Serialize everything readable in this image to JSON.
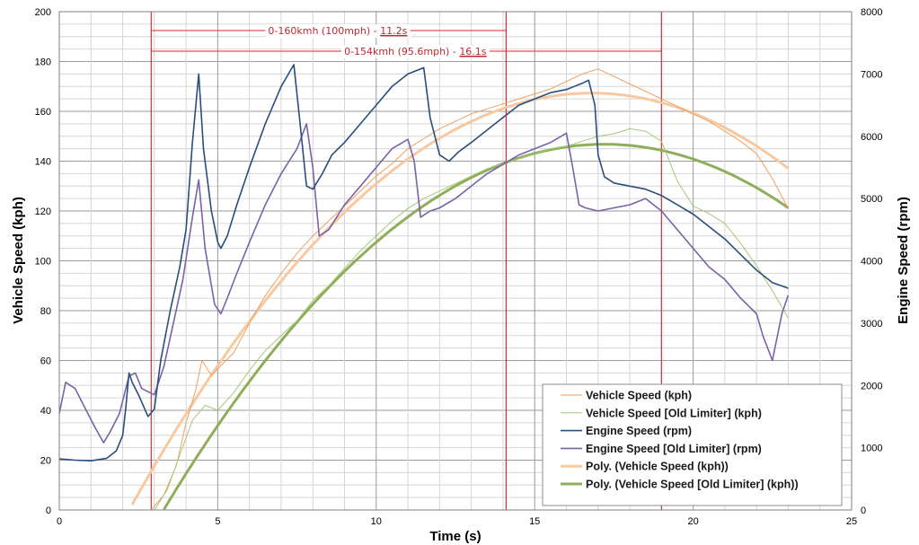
{
  "chart_data": {
    "type": "line",
    "title": "",
    "xlabel": "Time (s)",
    "ylabel_left": "Vehicle Speed (kph)",
    "ylabel_right": "Engine Speed (rpm)",
    "xlim": [
      0,
      25
    ],
    "ylim_left": [
      0,
      200
    ],
    "ylim_right": [
      0,
      8000
    ],
    "xticks": [
      0,
      5,
      10,
      15,
      20,
      25
    ],
    "yticks_left": [
      0,
      20,
      40,
      60,
      80,
      100,
      120,
      140,
      160,
      180,
      200
    ],
    "yticks_right": [
      0,
      1000,
      2000,
      3000,
      4000,
      5000,
      6000,
      7000,
      8000
    ],
    "grid": true,
    "legend_position": "bottom-right",
    "annotations": [
      {
        "text": "0-160kmh (100mph) - ",
        "highlight": "11.2s",
        "x_start": 2.9,
        "x_end": 14.1
      },
      {
        "text": "0-154kmh (95.6mph) - ",
        "highlight": "16.1s",
        "x_start": 2.9,
        "x_end": 19.0
      }
    ],
    "vertical_lines_x": [
      2.9,
      14.1,
      19.0
    ],
    "series": [
      {
        "name": "Vehicle Speed (kph)",
        "axis": "left",
        "color": "#f0a060",
        "width": 1,
        "x": [
          2.9,
          3.3,
          3.7,
          4.0,
          4.3,
          4.5,
          4.8,
          5.1,
          5.5,
          6.0,
          6.5,
          7.0,
          7.5,
          8.0,
          8.5,
          9.0,
          9.5,
          10.0,
          10.5,
          11.0,
          11.5,
          12.0,
          12.5,
          13.0,
          13.5,
          14.0,
          14.5,
          15.0,
          15.5,
          16.0,
          16.5,
          17.0,
          17.5,
          18.0,
          18.5,
          19.0,
          19.5,
          20.0,
          20.5,
          21.0,
          21.5,
          22.0,
          22.5,
          23.0
        ],
        "y": [
          0,
          6,
          18,
          35,
          48,
          60,
          54,
          58,
          63,
          75,
          86,
          95,
          103,
          110,
          116,
          122,
          128,
          134,
          139,
          145,
          149,
          153,
          156,
          159,
          161,
          163,
          165,
          167,
          169,
          172,
          175,
          177,
          174,
          171,
          168,
          165,
          162,
          159,
          156,
          152,
          148,
          143,
          133,
          121
        ]
      },
      {
        "name": "Vehicle Speed [Old Limiter] (kph)",
        "axis": "left",
        "color": "#a6c878",
        "width": 1,
        "x": [
          3.0,
          3.4,
          3.8,
          4.2,
          4.6,
          5.0,
          5.5,
          6.0,
          6.5,
          7.0,
          7.5,
          8.0,
          8.5,
          9.0,
          9.5,
          10.0,
          10.5,
          11.0,
          11.5,
          12.0,
          12.5,
          13.0,
          13.5,
          14.0,
          14.5,
          15.0,
          15.5,
          16.0,
          16.5,
          17.0,
          17.5,
          18.0,
          18.5,
          19.0,
          19.5,
          20.0,
          20.5,
          21.0,
          21.5,
          22.0,
          22.5,
          23.0
        ],
        "y": [
          0,
          8,
          22,
          36,
          42,
          40,
          47,
          56,
          64,
          70,
          76,
          84,
          90,
          97,
          104,
          110,
          116,
          121,
          125,
          128,
          131,
          134,
          137,
          139,
          141,
          143,
          145,
          146,
          148,
          150,
          151,
          153,
          152,
          148,
          132,
          122,
          119,
          115,
          107,
          98,
          88,
          77
        ]
      },
      {
        "name": "Engine Speed (rpm)",
        "axis": "right",
        "color": "#2a4e7c",
        "width": 1.6,
        "x": [
          0,
          0.5,
          1.0,
          1.5,
          1.8,
          2.0,
          2.1,
          2.2,
          2.3,
          2.5,
          2.8,
          3.0,
          3.2,
          3.5,
          3.8,
          4.0,
          4.2,
          4.4,
          4.55,
          4.8,
          5.0,
          5.1,
          5.3,
          5.6,
          6.0,
          6.5,
          7.0,
          7.4,
          7.6,
          7.8,
          8.0,
          8.3,
          8.6,
          9.0,
          9.5,
          10.0,
          10.5,
          11.0,
          11.5,
          11.7,
          12.0,
          12.3,
          12.6,
          13.0,
          13.5,
          14.0,
          14.5,
          15.0,
          15.5,
          16.0,
          16.5,
          16.7,
          16.9,
          17.0,
          17.2,
          17.5,
          18.0,
          18.5,
          19.0,
          19.5,
          20.0,
          20.5,
          21.0,
          21.5,
          22.0,
          22.5,
          23.0
        ],
        "y": [
          820,
          800,
          790,
          830,
          950,
          1200,
          1650,
          2200,
          2050,
          1850,
          1500,
          1620,
          2400,
          3200,
          3900,
          4500,
          5900,
          7000,
          5800,
          4800,
          4300,
          4200,
          4400,
          4900,
          5500,
          6200,
          6800,
          7150,
          6200,
          5200,
          5150,
          5400,
          5700,
          5900,
          6200,
          6500,
          6800,
          7000,
          7100,
          6300,
          5700,
          5600,
          5750,
          5900,
          6100,
          6300,
          6500,
          6600,
          6700,
          6750,
          6850,
          6900,
          6500,
          5700,
          5350,
          5250,
          5200,
          5150,
          5050,
          4900,
          4750,
          4550,
          4350,
          4100,
          3850,
          3650,
          3560
        ]
      },
      {
        "name": "Engine Speed [Old Limiter] (rpm)",
        "axis": "right",
        "color": "#7a62a8",
        "width": 1.6,
        "x": [
          0,
          0.2,
          0.5,
          0.8,
          1.1,
          1.4,
          1.6,
          1.9,
          2.2,
          2.4,
          2.6,
          2.8,
          3.0,
          3.3,
          3.6,
          3.9,
          4.2,
          4.4,
          4.6,
          4.9,
          5.1,
          5.3,
          5.6,
          6.0,
          6.5,
          7.0,
          7.5,
          7.8,
          8.0,
          8.2,
          8.5,
          9.0,
          9.5,
          10.0,
          10.5,
          11.0,
          11.2,
          11.4,
          11.7,
          12.0,
          12.5,
          13.0,
          13.5,
          14.0,
          14.5,
          15.0,
          15.5,
          16.0,
          16.2,
          16.4,
          16.6,
          17.0,
          17.5,
          18.0,
          18.5,
          19.0,
          19.5,
          20.0,
          20.5,
          21.0,
          21.5,
          22.0,
          22.2,
          22.5,
          22.8,
          23.0
        ],
        "y": [
          1550,
          2050,
          1950,
          1650,
          1350,
          1080,
          1250,
          1550,
          2150,
          2200,
          1950,
          1900,
          1850,
          2300,
          3000,
          3700,
          4700,
          5300,
          4200,
          3300,
          3150,
          3400,
          3800,
          4300,
          4900,
          5400,
          5800,
          6200,
          5500,
          4400,
          4500,
          4900,
          5200,
          5500,
          5800,
          5950,
          5600,
          4700,
          4800,
          4850,
          5000,
          5200,
          5400,
          5550,
          5700,
          5800,
          5900,
          6050,
          5500,
          4900,
          4850,
          4800,
          4850,
          4900,
          5000,
          4800,
          4500,
          4200,
          3900,
          3700,
          3400,
          3150,
          2800,
          2400,
          3150,
          3450
        ]
      },
      {
        "name": "Poly. (Vehicle Speed (kph))",
        "axis": "left",
        "color": "#f8c8a0",
        "width": 3,
        "trend": {
          "vertex_x": 16.8,
          "vertex_y": 167.3,
          "k": 0.7855,
          "x_from": 0,
          "x_to": 23
        }
      },
      {
        "name": "Poly. (Vehicle Speed [Old Limiter] (kph))",
        "axis": "right_is_false_left",
        "color": "#90ad5c",
        "width": 3,
        "trend": {
          "vertex_x": 17.2,
          "vertex_y": 146.8,
          "k": 0.7588,
          "x_from": 1.8,
          "x_to": 23
        }
      }
    ]
  }
}
